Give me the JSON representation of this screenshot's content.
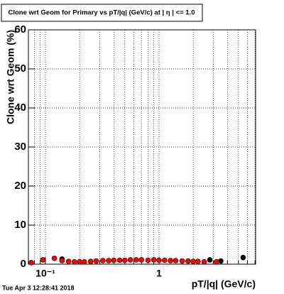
{
  "chart_data": {
    "type": "scatter",
    "title": "Clone wrt Geom for Primary vs pT/|q| (GeV/c) at | η | <= 1.0",
    "x_label": "pT/|q| (GeV/c)",
    "y_label": "Clone wrt Geom (%)",
    "footer": "Tue Apr  3 12:28:41 2018",
    "xlog": true,
    "grid": true,
    "xlim": [
      0.0708,
      7.08
    ],
    "ylim": [
      0,
      60
    ],
    "yticks": [
      0,
      10,
      20,
      30,
      40,
      50,
      60
    ],
    "xticks": [
      {
        "value": 0.1,
        "label": "10⁻¹"
      },
      1
    ],
    "xminorticks": [
      0.08,
      0.09,
      0.2,
      0.3,
      0.4,
      0.5,
      0.6,
      0.7,
      0.8,
      0.9,
      2,
      3,
      4,
      5,
      6,
      7
    ],
    "series": [
      {
        "name": "black",
        "color": "#000000",
        "x": [
          0.14,
          2.8,
          3.5,
          5.5
        ],
        "values": [
          1.3,
          1.1,
          0.8,
          1.7
        ]
      },
      {
        "name": "red",
        "color": "#ff0000",
        "x": [
          0.075,
          0.095,
          0.12,
          0.14,
          0.16,
          0.18,
          0.2,
          0.22,
          0.25,
          0.28,
          0.32,
          0.36,
          0.4,
          0.45,
          0.5,
          0.56,
          0.63,
          0.7,
          0.8,
          0.9,
          1.0,
          1.12,
          1.26,
          1.4,
          1.6,
          1.8,
          2.0,
          2.2,
          2.5,
          3.2
        ],
        "values": [
          0.4,
          1.1,
          1.5,
          0.9,
          0.7,
          0.6,
          0.6,
          0.6,
          0.7,
          0.8,
          0.9,
          0.9,
          1.0,
          1.0,
          1.0,
          1.1,
          1.1,
          1.1,
          1.0,
          1.1,
          1.0,
          1.0,
          0.9,
          0.9,
          0.8,
          0.8,
          0.7,
          0.7,
          0.6,
          0.6
        ]
      }
    ]
  }
}
